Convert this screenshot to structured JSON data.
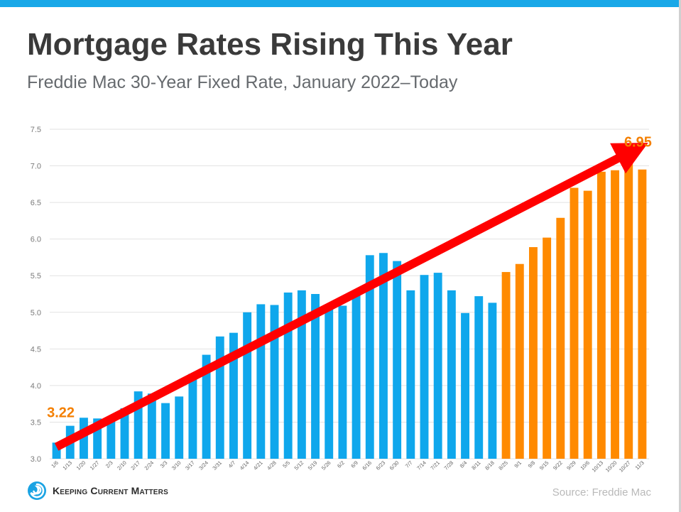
{
  "header": {
    "title": "Mortgage Rates Rising This Year",
    "subtitle": "Freddie Mac 30-Year Fixed Rate, January 2022–Today"
  },
  "colors": {
    "top_bar": "#19a8e8",
    "bar_blue": "#0fa7ec",
    "bar_orange": "#ff8a00",
    "arrow": "#ff0000",
    "callout": "#f47f00",
    "grid": "#e2e2e2"
  },
  "chart_data": {
    "type": "bar",
    "categories": [
      "1/6",
      "1/13",
      "1/20",
      "1/27",
      "2/3",
      "2/10",
      "2/17",
      "2/24",
      "3/3",
      "3/10",
      "3/17",
      "3/24",
      "3/31",
      "4/7",
      "4/14",
      "4/21",
      "4/28",
      "5/5",
      "5/12",
      "5/19",
      "5/26",
      "6/2",
      "6/9",
      "6/16",
      "6/23",
      "6/30",
      "7/7",
      "7/14",
      "7/21",
      "7/28",
      "8/4",
      "8/11",
      "8/18",
      "8/25",
      "9/1",
      "9/8",
      "9/15",
      "9/22",
      "9/29",
      "10/6",
      "10/13",
      "10/20",
      "10/27",
      "11/3"
    ],
    "values": [
      3.22,
      3.45,
      3.56,
      3.55,
      3.55,
      3.69,
      3.92,
      3.89,
      3.76,
      3.85,
      4.16,
      4.42,
      4.67,
      4.72,
      5.0,
      5.11,
      5.1,
      5.27,
      5.3,
      5.25,
      5.1,
      5.09,
      5.23,
      5.78,
      5.81,
      5.7,
      5.3,
      5.51,
      5.54,
      5.3,
      4.99,
      5.22,
      5.13,
      5.55,
      5.66,
      5.89,
      6.02,
      6.29,
      6.7,
      6.66,
      6.92,
      6.94,
      7.08,
      6.95
    ],
    "series_colors": [
      "blue",
      "blue",
      "blue",
      "blue",
      "blue",
      "blue",
      "blue",
      "blue",
      "blue",
      "blue",
      "blue",
      "blue",
      "blue",
      "blue",
      "blue",
      "blue",
      "blue",
      "blue",
      "blue",
      "blue",
      "blue",
      "blue",
      "blue",
      "blue",
      "blue",
      "blue",
      "blue",
      "blue",
      "blue",
      "blue",
      "blue",
      "blue",
      "blue",
      "orange",
      "orange",
      "orange",
      "orange",
      "orange",
      "orange",
      "orange",
      "orange",
      "orange",
      "orange",
      "orange"
    ],
    "yticks": [
      "3.0",
      "3.5",
      "4.0",
      "4.5",
      "5.0",
      "5.5",
      "6.0",
      "6.5",
      "7.0",
      "7.5"
    ],
    "ylim": [
      3.0,
      7.5
    ],
    "grid": true,
    "annotations": [
      {
        "text": "3.22",
        "category": "1/6"
      },
      {
        "text": "6.95",
        "category": "11/3"
      }
    ],
    "trend_arrow": {
      "from": {
        "category": "1/6",
        "value": 3.22
      },
      "to": {
        "category": "10/27",
        "value": 7.12
      }
    }
  },
  "footer": {
    "logo_text": "Keeping Current Matters",
    "source": "Source: Freddie Mac"
  }
}
